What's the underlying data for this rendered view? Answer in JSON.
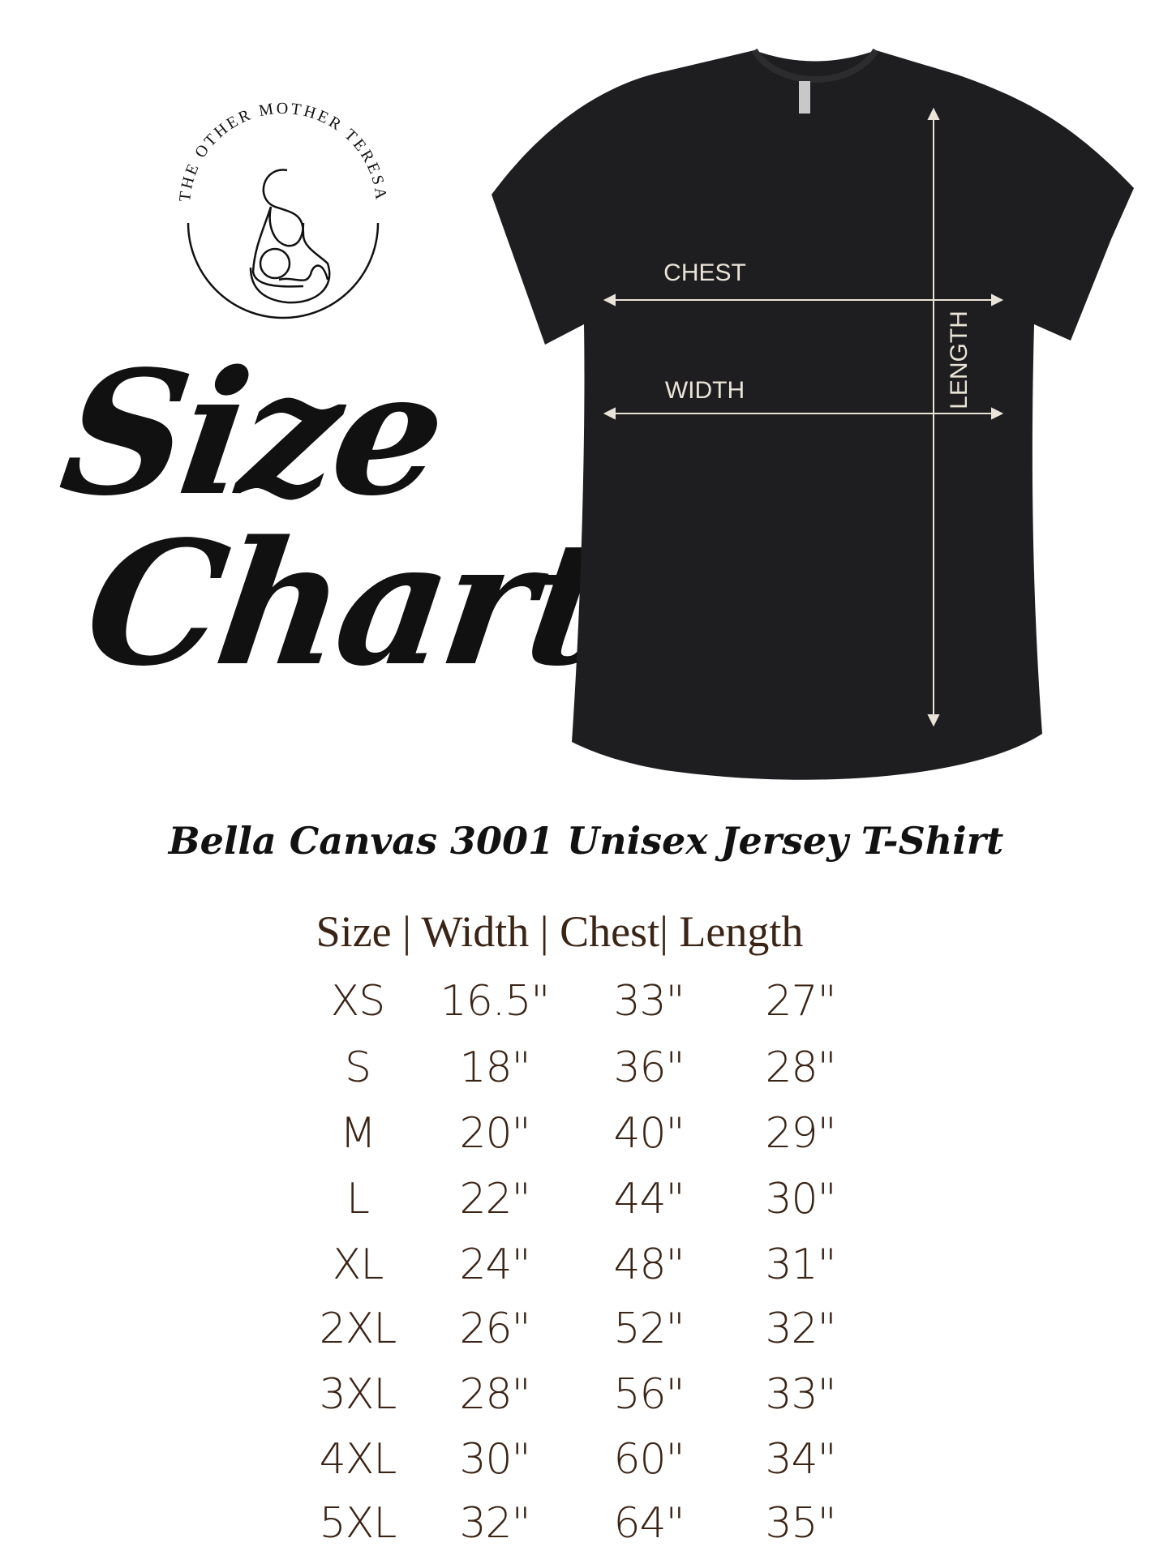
{
  "logo": {
    "text": "THE OTHER MOTHER TERESA",
    "icon": "mother-and-baby-icon"
  },
  "title": {
    "line1": "Size",
    "line2": "Chart"
  },
  "shirt": {
    "color": "#1e1e20",
    "measure_labels": {
      "chest": "CHEST",
      "width": "WIDTH",
      "length": "LENGTH"
    }
  },
  "subtitle": "Bella Canvas 3001 Unisex Jersey T-Shirt",
  "table": {
    "header": "Size | Width | Chest| Length",
    "text_color": "#3a2416",
    "rows": [
      [
        "XS",
        "16.5\"",
        "33\"",
        "27\""
      ],
      [
        "S",
        "18\"",
        "36\"",
        "28\""
      ],
      [
        "M",
        "20\"",
        "40\"",
        "29\""
      ],
      [
        "L",
        "22\"",
        "44\"",
        "30\""
      ],
      [
        "XL",
        "24\"",
        "48\"",
        "31\""
      ],
      [
        "2XL",
        "26\"",
        "52\"",
        "32\""
      ],
      [
        "3XL",
        "28\"",
        "56\"",
        "33\""
      ],
      [
        "4XL",
        "30\"",
        "60\"",
        "34\""
      ],
      [
        "5XL",
        "32\"",
        "64\"",
        "35\""
      ]
    ]
  }
}
